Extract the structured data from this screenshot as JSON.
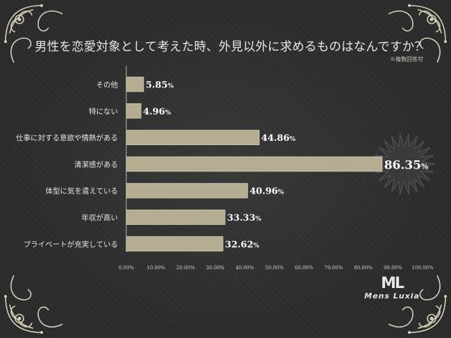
{
  "title": "男性を恋愛対象として考えた時、外見以外に求めるものはなんですか？",
  "note": "※複数回答可",
  "brand": {
    "mark": "ML",
    "name": "Mens Luxia"
  },
  "colors": {
    "bar": "#b5ad91",
    "bar_stroke": "#d8d2bc",
    "text": "#e8e6e0",
    "burst": "#3a3a3a"
  },
  "chart_data": {
    "type": "bar",
    "orientation": "horizontal",
    "categories": [
      "その他",
      "特にない",
      "仕事に対する意欲や情熱がある",
      "清潔感がある",
      "体型に気を遣えている",
      "年収が高い",
      "プライベートが充実している"
    ],
    "values": [
      5.85,
      4.96,
      44.86,
      86.35,
      40.96,
      33.33,
      32.62
    ],
    "value_labels": [
      "5.85",
      "4.96",
      "44.86",
      "86.35",
      "40.96",
      "33.33",
      "32.62"
    ],
    "unit": "%",
    "xlim": [
      0,
      100
    ],
    "ticks": [
      "0.00%",
      "10.00%",
      "20.00%",
      "30.00%",
      "40.00%",
      "50.00%",
      "60.00%",
      "70.00%",
      "80.00%",
      "90.00%",
      "100.00%"
    ],
    "highlight_index": 3,
    "grid": false
  }
}
